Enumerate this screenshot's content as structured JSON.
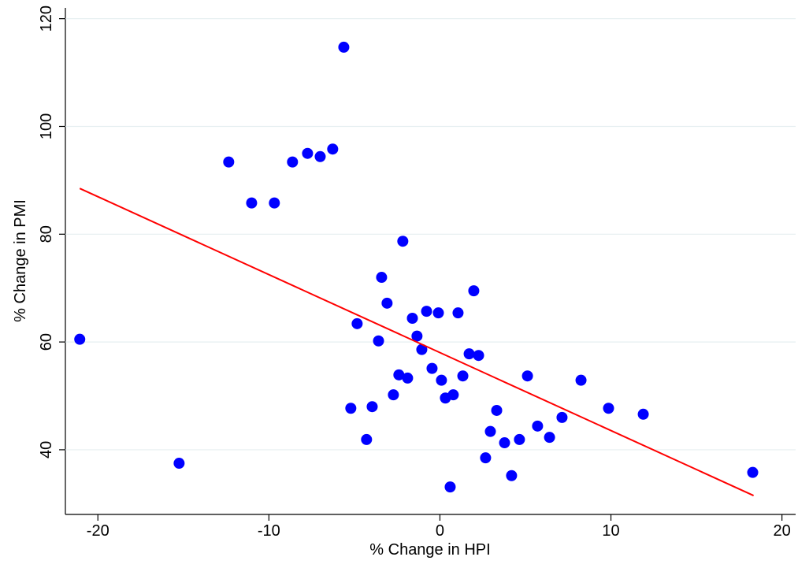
{
  "chart_data": {
    "type": "scatter",
    "x_label": "% Change in HPI",
    "y_label": "% Change in PMI",
    "xlim": [
      -21.9,
      20.8
    ],
    "ylim": [
      28,
      122
    ],
    "xticks": [
      -20,
      -10,
      0,
      10,
      20
    ],
    "yticks": [
      40,
      60,
      80,
      100,
      120
    ],
    "grid": true,
    "color": "#0000ff",
    "x": [
      -21.06,
      -15.25,
      -12.35,
      -11.01,
      -9.68,
      -8.62,
      -7.74,
      -7.0,
      -6.27,
      -5.62,
      -5.21,
      -4.84,
      -4.29,
      -3.96,
      -3.59,
      -3.41,
      -3.09,
      -2.72,
      -2.4,
      -2.17,
      -1.89,
      -1.61,
      -1.34,
      -1.06,
      -0.78,
      -0.46,
      -0.09,
      0.09,
      0.32,
      0.6,
      0.78,
      1.06,
      1.34,
      1.71,
      1.98,
      2.26,
      2.67,
      2.95,
      3.32,
      3.78,
      4.19,
      4.65,
      5.12,
      5.71,
      6.41,
      7.14,
      8.25,
      9.86,
      11.89,
      18.29
    ],
    "values": [
      60.5,
      37.5,
      93.4,
      85.8,
      85.8,
      93.4,
      95.0,
      94.4,
      95.8,
      114.7,
      47.7,
      63.4,
      41.9,
      48.0,
      60.2,
      72.0,
      67.2,
      50.2,
      53.9,
      78.7,
      53.3,
      64.4,
      61.1,
      58.6,
      65.7,
      55.1,
      65.4,
      52.9,
      49.6,
      33.1,
      50.2,
      65.4,
      53.7,
      57.8,
      69.5,
      57.5,
      38.5,
      43.4,
      47.3,
      41.3,
      35.2,
      41.9,
      53.7,
      44.4,
      42.3,
      46.0,
      52.9,
      47.7,
      46.6,
      35.8
    ],
    "fit": {
      "color": "#ff0000",
      "x": [
        -21.06,
        18.34
      ],
      "values": [
        88.5,
        31.5
      ]
    }
  }
}
